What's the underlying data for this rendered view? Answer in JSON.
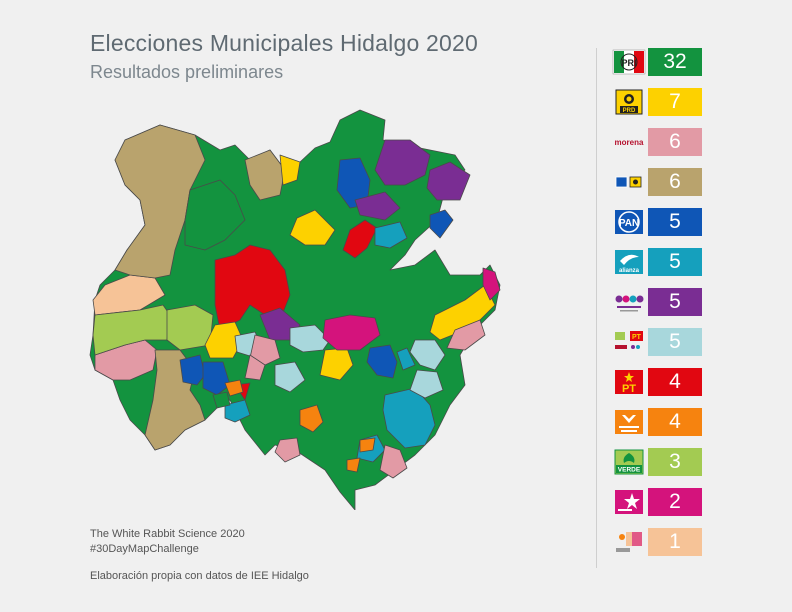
{
  "header": {
    "title": "Elecciones Municipales Hidalgo 2020",
    "subtitle": "Resultados preliminares"
  },
  "credits": {
    "author": "The White Rabbit Science 2020",
    "challenge": "#30DayMapChallenge",
    "source": "Elaboración propia con datos de IEE Hidalgo"
  },
  "legend": {
    "items": [
      {
        "party": "PRI",
        "logo_text": "PRI",
        "count": "32",
        "color": "#13933f"
      },
      {
        "party": "PRD",
        "logo_text": "PRD",
        "count": "7",
        "color": "#fdd100"
      },
      {
        "party": "Morena",
        "logo_text": "morena",
        "count": "6",
        "color": "#e29aa5"
      },
      {
        "party": "PAN-PRD",
        "logo_text": "",
        "count": "6",
        "color": "#b9a36d"
      },
      {
        "party": "PAN",
        "logo_text": "PAN",
        "count": "5",
        "color": "#0f56b6"
      },
      {
        "party": "Nueva Alianza",
        "logo_text": "alianza",
        "count": "5",
        "color": "#15a0bd"
      },
      {
        "party": "Encuentro Social",
        "logo_text": "",
        "count": "5",
        "color": "#7a2d93"
      },
      {
        "party": "PT-Morena",
        "logo_text": "PT",
        "count": "5",
        "color": "#a8d7dc"
      },
      {
        "party": "PT",
        "logo_text": "PT",
        "count": "4",
        "color": "#e10711"
      },
      {
        "party": "Movimiento Ciudadano",
        "logo_text": "",
        "count": "4",
        "color": "#f6830f"
      },
      {
        "party": "Verde",
        "logo_text": "VERDE",
        "count": "3",
        "color": "#a3cb52"
      },
      {
        "party": "Podemos",
        "logo_text": "",
        "count": "2",
        "color": "#d4137c"
      },
      {
        "party": "Otro",
        "logo_text": "",
        "count": "1",
        "color": "#f6c397"
      }
    ]
  },
  "map": {
    "name": "Hidalgo municipalities",
    "border_color": "#555555"
  }
}
